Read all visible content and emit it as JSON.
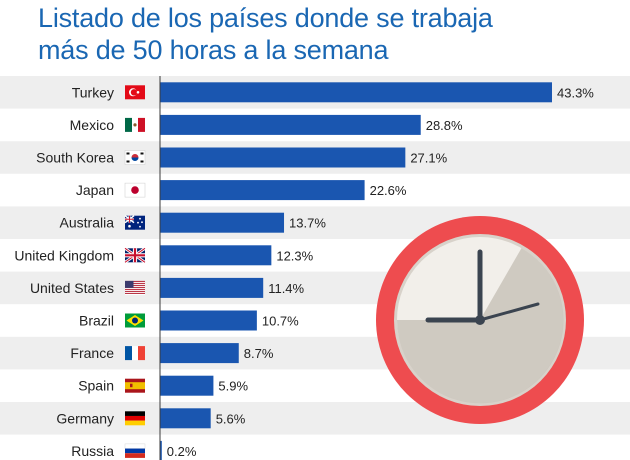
{
  "title": {
    "line1": "Listado de los países donde se trabaja",
    "line2": "más de 50 horas a la semana"
  },
  "colors": {
    "title": "#1a67b3",
    "bar": "#1a56b0",
    "row_stripe": "#eeeeee",
    "axis": "#3a3a3a",
    "clock_rim": "#ee4c4f",
    "clock_face": "#f2efea",
    "clock_shade": "#cbc5bd",
    "clock_hands": "#3b4450"
  },
  "chart_data": {
    "type": "bar",
    "orientation": "horizontal",
    "title": "Listado de los países donde se trabaja más de 50 horas a la semana",
    "xlabel": "",
    "ylabel": "",
    "unit": "%",
    "xlim": [
      0,
      45
    ],
    "categories": [
      "Turkey",
      "Mexico",
      "South Korea",
      "Japan",
      "Australia",
      "United Kingdom",
      "United States",
      "Brazil",
      "France",
      "Spain",
      "Germany",
      "Russia"
    ],
    "values": [
      43.3,
      28.8,
      27.1,
      22.6,
      13.7,
      12.3,
      11.4,
      10.7,
      8.7,
      5.9,
      5.6,
      0.2
    ],
    "labels": [
      "43.3%",
      "28.8%",
      "27.1%",
      "22.6%",
      "13.7%",
      "12.3%",
      "11.4%",
      "10.7%",
      "8.7%",
      "5.9%",
      "5.6%",
      "0.2%"
    ],
    "flags": [
      "turkey-flag-icon",
      "mexico-flag-icon",
      "south-korea-flag-icon",
      "japan-flag-icon",
      "australia-flag-icon",
      "united-kingdom-flag-icon",
      "united-states-flag-icon",
      "brazil-flag-icon",
      "france-flag-icon",
      "spain-flag-icon",
      "germany-flag-icon",
      "russia-flag-icon"
    ]
  },
  "decoration": {
    "icon": "clock-icon"
  }
}
